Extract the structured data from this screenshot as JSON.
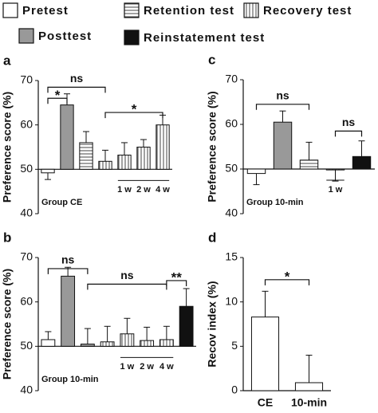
{
  "legend": [
    {
      "name": "Pretest",
      "fill": "white"
    },
    {
      "name": "Posttest",
      "fill": "gray"
    },
    {
      "name": "Retention test",
      "fill": "hstripe"
    },
    {
      "name": "Recovery test",
      "fill": "vstripe"
    },
    {
      "name": "Reinstatement test",
      "fill": "black"
    }
  ],
  "chart_data": [
    {
      "type": "bar",
      "label": "a",
      "ylabel": "Preference score (%)",
      "ylim": [
        40,
        70
      ],
      "yticks": [
        40,
        50,
        60,
        70
      ],
      "baseline": 50,
      "group_label": "Group CE",
      "categories": [
        null,
        null,
        null,
        null,
        "1 w",
        "2 w",
        "4 w"
      ],
      "values": [
        49.2,
        64.5,
        56,
        51.8,
        53.2,
        55,
        60
      ],
      "errors": [
        1.5,
        2.5,
        2.5,
        2.5,
        2.8,
        1.7,
        2.2
      ],
      "fills": [
        "white",
        "gray",
        "hstripe",
        "vstripe",
        "vstripe",
        "vstripe",
        "vstripe"
      ],
      "brackets": [
        {
          "label": "*",
          "from": 0,
          "to": 1,
          "y": 66
        },
        {
          "label": "ns",
          "from": 0,
          "to": 3,
          "y": 68.5
        },
        {
          "label": "*",
          "from": 3,
          "to": 6,
          "y": 62.8
        }
      ]
    },
    {
      "type": "bar",
      "label": "b",
      "ylabel": "Preference score (%)",
      "ylim": [
        40,
        70
      ],
      "yticks": [
        40,
        50,
        60,
        70
      ],
      "baseline": 50,
      "group_label": "Group 10-min",
      "categories": [
        null,
        null,
        null,
        null,
        "1 w",
        "2 w",
        "4 w",
        null
      ],
      "values": [
        51.5,
        65.8,
        50.5,
        51,
        52.8,
        51.3,
        51.5,
        59
      ],
      "errors": [
        1.8,
        2,
        3.5,
        3.5,
        3.5,
        3,
        3,
        4
      ],
      "fills": [
        "white",
        "gray",
        "hstripe",
        "vstripe",
        "vstripe",
        "vstripe",
        "vstripe",
        "black"
      ],
      "brackets": [
        {
          "label": "ns",
          "from": 0,
          "to": 2,
          "y": 67.5
        },
        {
          "label": "ns",
          "from": 2,
          "to": 6,
          "y": 64
        },
        {
          "label": "**",
          "from": 6,
          "to": 7,
          "y": 64.8
        }
      ]
    },
    {
      "type": "bar",
      "label": "c",
      "ylabel": "Preference score (%)",
      "ylim": [
        40,
        70
      ],
      "yticks": [
        40,
        50,
        60,
        70
      ],
      "baseline": 50,
      "group_label": "Group 10-min",
      "categories": [
        null,
        null,
        null,
        "1 w",
        null
      ],
      "values": [
        49,
        60.5,
        52,
        49.8,
        52.8
      ],
      "errors": [
        2.5,
        2.5,
        4,
        2.5,
        3.5
      ],
      "fills": [
        "white",
        "gray",
        "hstripe",
        "vstripe",
        "black"
      ],
      "brackets": [
        {
          "label": "ns",
          "from": 0,
          "to": 2,
          "y": 64.5
        },
        {
          "label": "ns",
          "from": 3,
          "to": 4,
          "y": 58.5
        }
      ]
    },
    {
      "type": "bar",
      "label": "d",
      "ylabel": "Recov index (%)",
      "ylim": [
        0,
        15
      ],
      "yticks": [
        0,
        5,
        10,
        15
      ],
      "baseline": 0,
      "categories": [
        "CE",
        "10-min"
      ],
      "values": [
        8.3,
        0.9
      ],
      "errors": [
        2.9,
        3.1
      ],
      "fills": [
        "white",
        "white"
      ],
      "brackets": [
        {
          "label": "*",
          "from": 0,
          "to": 1,
          "y": 12.5
        }
      ]
    }
  ]
}
